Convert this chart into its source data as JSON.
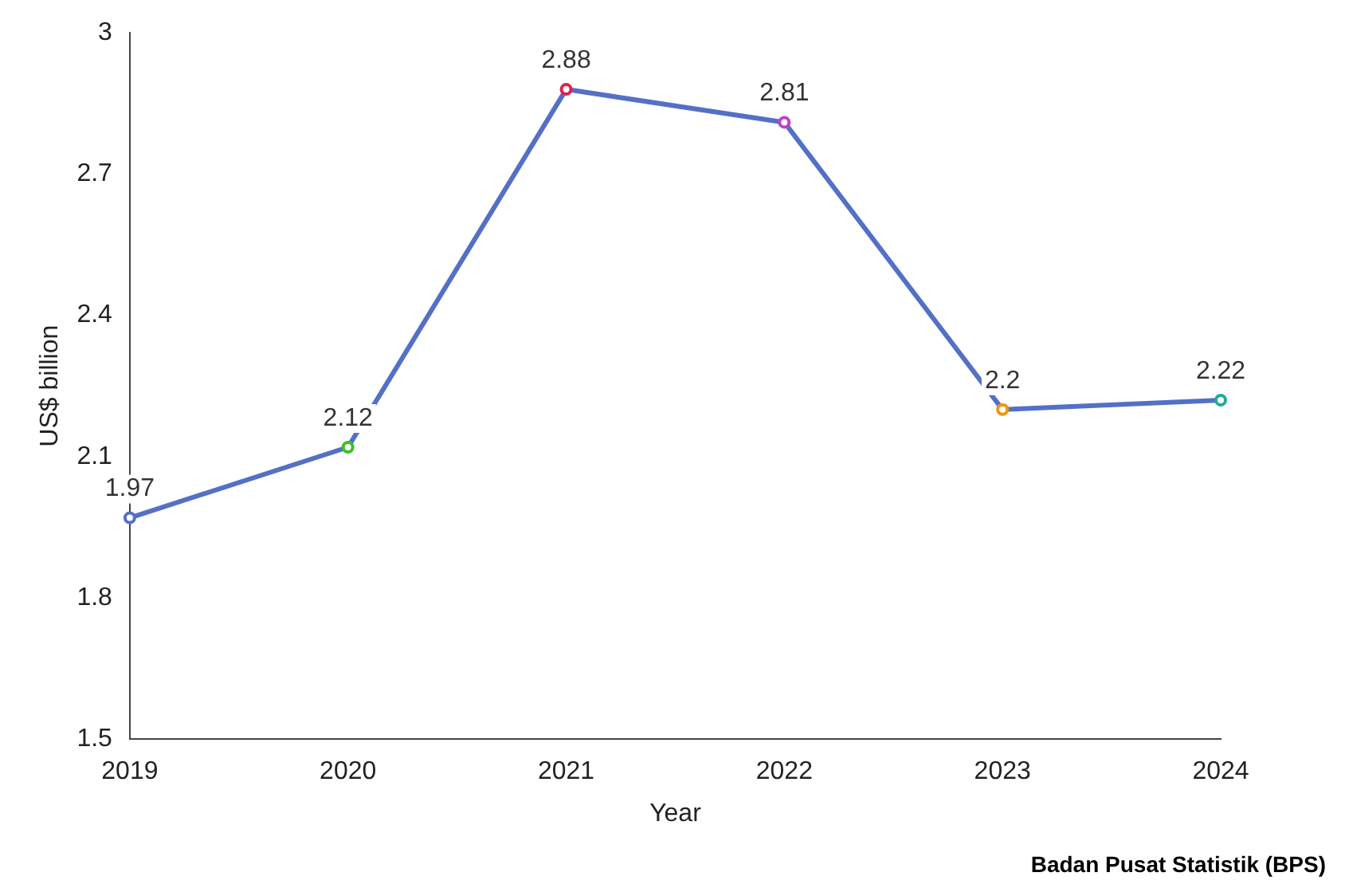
{
  "chart_data": {
    "type": "line",
    "x": [
      2019,
      2020,
      2021,
      2022,
      2023,
      2024
    ],
    "series": [
      {
        "color": "#5470c6",
        "colors": [
          "#5470c6",
          "#3fbf2a",
          "#e0204a",
          "#c040c8",
          "#f0960e",
          "#20a8a0"
        ],
        "values": [
          1.97,
          2.12,
          2.88,
          2.81,
          2.2,
          2.22
        ]
      }
    ],
    "xlim": [
      2019,
      2024
    ],
    "xticks": [
      2019,
      2020,
      2021,
      2022,
      2023,
      2024
    ],
    "ylim": [
      1.5,
      3
    ],
    "yticks": [
      1.5,
      1.8,
      2.1,
      2.4,
      2.7,
      3
    ],
    "xlabel": "Year",
    "ylabel": "US$ billion",
    "data_labels": true,
    "grid": false,
    "legend": false,
    "marker": "circle",
    "annotations": [
      "Badan Pusat Statistik (BPS)"
    ]
  }
}
